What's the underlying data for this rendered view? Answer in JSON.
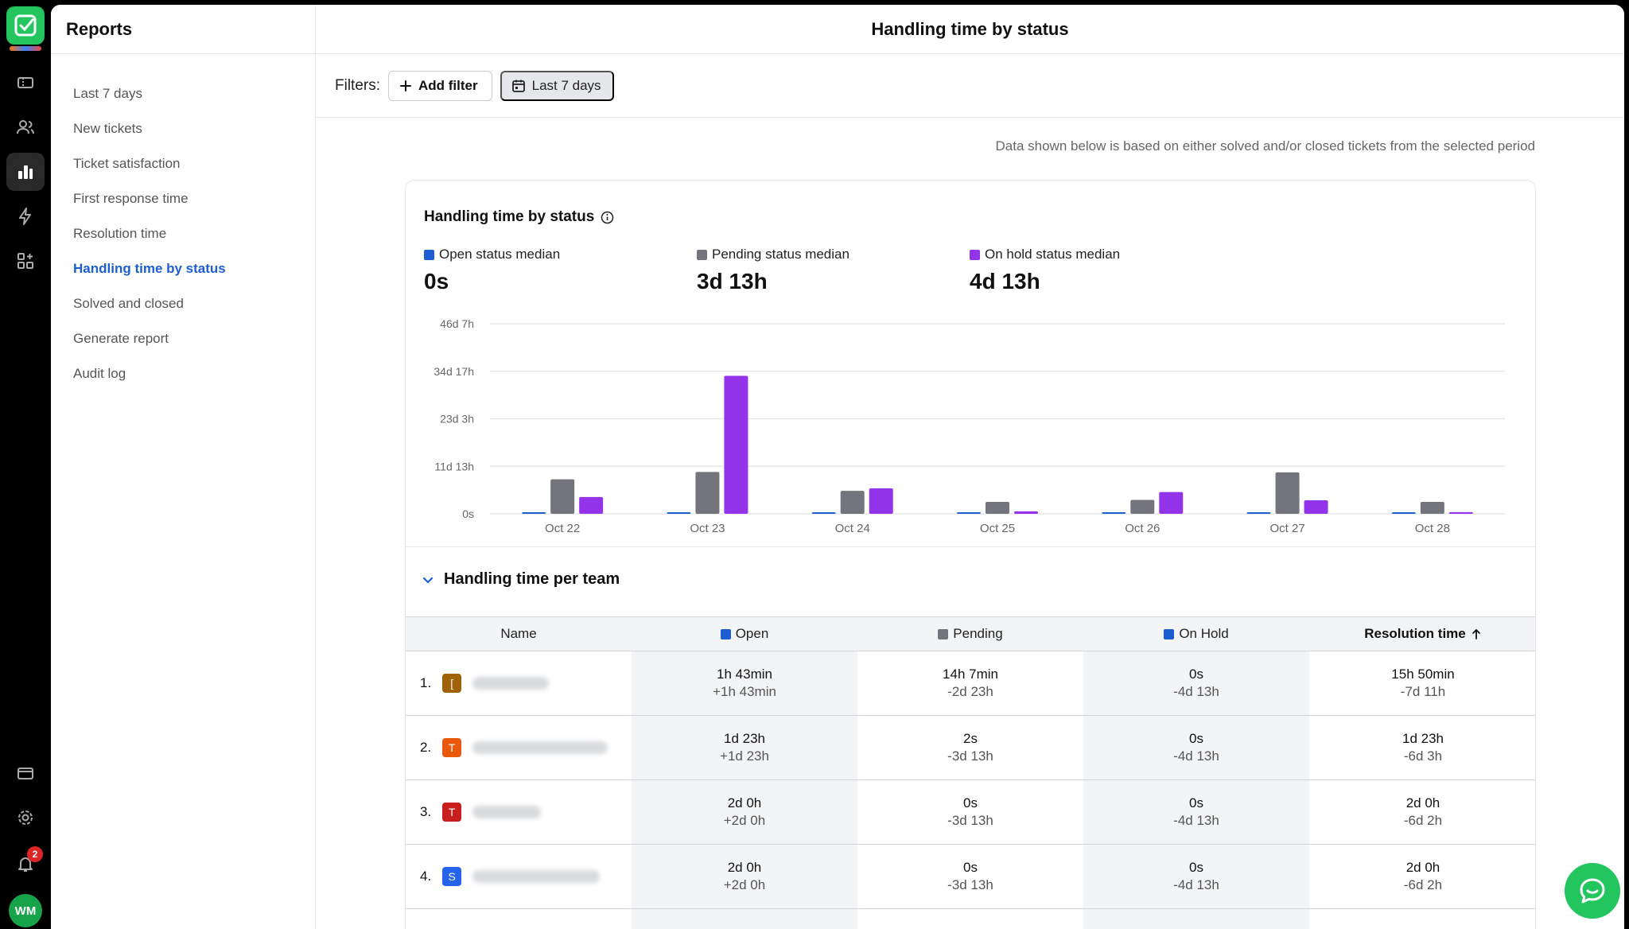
{
  "rail": {
    "badge_count": "2",
    "avatar_initials": "WM"
  },
  "sidebar": {
    "title": "Reports",
    "items": [
      {
        "label": "Last 7 days"
      },
      {
        "label": "New tickets"
      },
      {
        "label": "Ticket satisfaction"
      },
      {
        "label": "First response time"
      },
      {
        "label": "Resolution time"
      },
      {
        "label": "Handling time by status"
      },
      {
        "label": "Solved and closed"
      },
      {
        "label": "Generate report"
      },
      {
        "label": "Audit log"
      }
    ],
    "active_item": "Handling time by status"
  },
  "header": {
    "title": "Handling time by status"
  },
  "filters": {
    "label": "Filters:",
    "add_label": "Add filter",
    "date_label": "Last 7 days"
  },
  "note": "Data shown below is based on either solved and/or closed tickets from the selected period",
  "card": {
    "title": "Handling time by status",
    "stats": [
      {
        "label": "Open status median",
        "value": "0s",
        "color": "#1d5fd1"
      },
      {
        "label": "Pending status median",
        "value": "3d 13h",
        "color": "#74747c"
      },
      {
        "label": "On hold status median",
        "value": "4d 13h",
        "color": "#9333ea"
      }
    ]
  },
  "chart_data": {
    "type": "bar",
    "categories": [
      "Oct 22",
      "Oct 23",
      "Oct 24",
      "Oct 25",
      "Oct 26",
      "Oct 27",
      "Oct 28"
    ],
    "y_tick_labels": [
      "0s",
      "11d 13h",
      "23d 3h",
      "34d 17h",
      "46d 7h"
    ],
    "ylim_days": [
      0,
      46.3
    ],
    "grid": true,
    "series": [
      {
        "name": "Open",
        "color": "#1d5fd1",
        "values": [
          0.2,
          0.2,
          0.2,
          0.2,
          0.2,
          0.2,
          0.2
        ]
      },
      {
        "name": "Pending",
        "color": "#74747c",
        "values": [
          8.4,
          10.2,
          5.6,
          2.9,
          3.4,
          10.1,
          2.9
        ]
      },
      {
        "name": "On hold",
        "color": "#9333ea",
        "values": [
          4.1,
          33.6,
          6.2,
          0.6,
          5.3,
          3.3,
          0.4
        ]
      }
    ]
  },
  "team_section": {
    "title": "Handling time per team",
    "headers": {
      "name": "Name",
      "open": "Open",
      "pending": "Pending",
      "onhold": "On Hold",
      "resolution": "Resolution time"
    },
    "rows": [
      {
        "rank": "1.",
        "badge": "[",
        "badge_color": "#a16207",
        "open": "1h 43min",
        "open_sub": "+1h 43min",
        "pending": "14h 7min",
        "pending_sub": "-2d 23h",
        "onhold": "0s",
        "onhold_sub": "-4d 13h",
        "res": "15h 50min",
        "res_sub": "-7d 11h"
      },
      {
        "rank": "2.",
        "badge": "T",
        "badge_color": "#ea580c",
        "open": "1d 23h",
        "open_sub": "+1d 23h",
        "pending": "2s",
        "pending_sub": "-3d 13h",
        "onhold": "0s",
        "onhold_sub": "-4d 13h",
        "res": "1d 23h",
        "res_sub": "-6d 3h"
      },
      {
        "rank": "3.",
        "badge": "T",
        "badge_color": "#c81e1e",
        "open": "2d 0h",
        "open_sub": "+2d 0h",
        "pending": "0s",
        "pending_sub": "-3d 13h",
        "onhold": "0s",
        "onhold_sub": "-4d 13h",
        "res": "2d 0h",
        "res_sub": "-6d 2h"
      },
      {
        "rank": "4.",
        "badge": "S",
        "badge_color": "#2563eb",
        "open": "2d 0h",
        "open_sub": "+2d 0h",
        "pending": "0s",
        "pending_sub": "-3d 13h",
        "onhold": "0s",
        "onhold_sub": "-4d 13h",
        "res": "2d 0h",
        "res_sub": "-6d 2h"
      }
    ]
  }
}
